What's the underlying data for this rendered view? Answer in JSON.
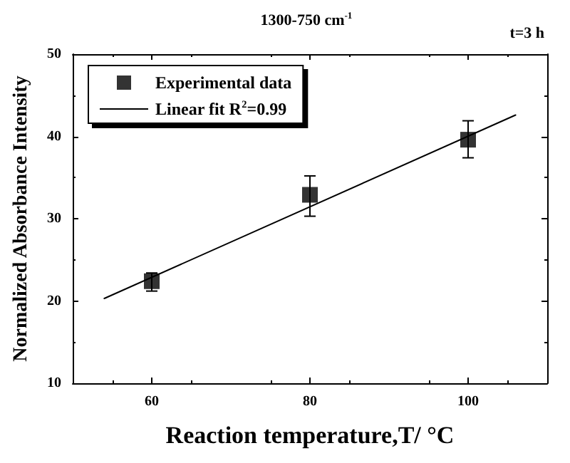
{
  "chart_data": {
    "type": "scatter",
    "title": "1300-750 cm$^{-1}$",
    "xlabel": "Reaction temperature,T/ °C",
    "ylabel": "Normalized Absorbance Intensity",
    "annotations": [
      "t=3 h"
    ],
    "xlim": [
      50,
      110
    ],
    "xticks": [
      60,
      80,
      100
    ],
    "ylim": [
      10,
      50
    ],
    "yticks": [
      10,
      20,
      30,
      40,
      50
    ],
    "series": [
      {
        "name": "Experimental data",
        "color": "#000000",
        "marker": "square",
        "x": [
          60,
          80,
          100
        ],
        "values": [
          22.4,
          32.9,
          39.6
        ],
        "errors": [
          [
            21.2,
            23.4
          ],
          [
            30.3,
            35.2
          ],
          [
            37.4,
            41.9
          ]
        ]
      },
      {
        "name": "Linear fit R$^{2}$=0.99",
        "type": "line",
        "color": "#000000",
        "marker": "none",
        "line_style": "solid",
        "x": [
          54,
          106
        ],
        "values": [
          20.3,
          42.6
        ]
      }
    ],
    "legend": "top left",
    "grid": false
  }
}
